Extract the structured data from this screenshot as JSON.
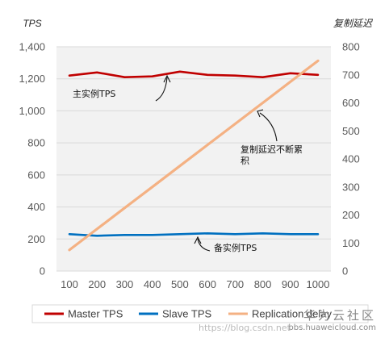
{
  "chart_data": {
    "type": "line",
    "x": [
      100,
      200,
      300,
      400,
      500,
      600,
      700,
      800,
      900,
      1000
    ],
    "ylabel_left": "TPS",
    "ylabel_right": "复制延迟",
    "ylim_left": [
      0,
      1400
    ],
    "yticks_left": [
      "0",
      "200",
      "400",
      "600",
      "800",
      "1,000",
      "1,200",
      "1,400"
    ],
    "ylim_right": [
      0,
      800
    ],
    "yticks_right": [
      "0",
      "100",
      "200",
      "300",
      "400",
      "500",
      "600",
      "700",
      "800"
    ],
    "grid": true,
    "legend_position": "bottom",
    "series": [
      {
        "name": "Master TPS",
        "axis": "left",
        "color": "#c00000",
        "values": [
          1220,
          1240,
          1210,
          1215,
          1245,
          1225,
          1220,
          1210,
          1235,
          1225
        ]
      },
      {
        "name": "Slave TPS",
        "axis": "left",
        "color": "#0070c0",
        "values": [
          230,
          220,
          225,
          225,
          230,
          235,
          230,
          235,
          230,
          230
        ]
      },
      {
        "name": "Replication delay",
        "axis": "right",
        "color": "#f4b183",
        "values": [
          75,
          150,
          225,
          300,
          375,
          450,
          525,
          600,
          675,
          750
        ]
      }
    ],
    "annotations": [
      {
        "text": "主实例TPS"
      },
      {
        "text": "复制延迟不断累"
      },
      {
        "text": "积"
      },
      {
        "text": "备实例TPS"
      }
    ]
  },
  "watermark": {
    "brand": "华为云社区",
    "site": "bbs.huaweicloud.com",
    "url": "https://blog.csdn.net"
  }
}
